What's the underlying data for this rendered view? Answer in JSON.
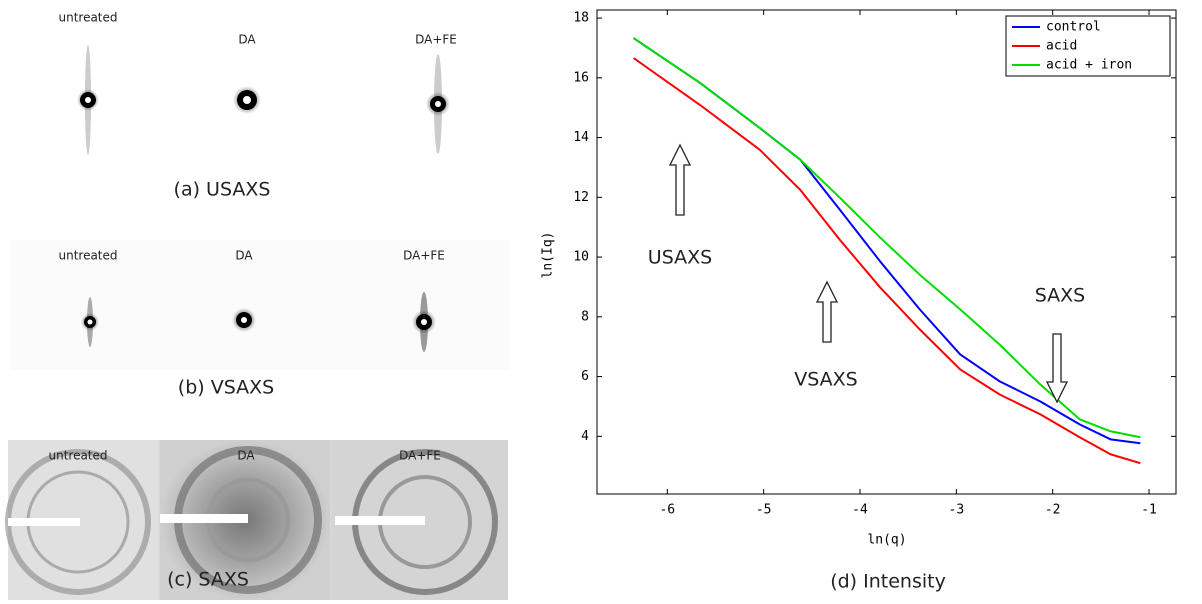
{
  "panels": [
    {
      "labels": [
        "untreated",
        "DA",
        "DA+FE"
      ],
      "caption": "(a) USAXS"
    },
    {
      "labels": [
        "untreated",
        "DA",
        "DA+FE"
      ],
      "caption": "(b) VSAXS"
    },
    {
      "labels": [
        "untreated",
        "DA",
        "DA+FE"
      ],
      "caption": "(c) SAXS"
    }
  ],
  "chart_data": {
    "type": "line",
    "caption": "(d) Intensity",
    "xlabel": "ln(q)",
    "ylabel": "ln(Iq)",
    "xlim": [
      -6.73,
      -0.72
    ],
    "ylim": [
      2.07,
      18.27
    ],
    "xticks": [
      -6,
      -5,
      -4,
      -3,
      -2,
      -1
    ],
    "yticks": [
      4,
      6,
      8,
      10,
      12,
      14,
      16,
      18
    ],
    "grid": false,
    "legend": "upper right",
    "x": [
      -6.35,
      -5.66,
      -5.04,
      -4.62,
      -4.21,
      -3.79,
      -3.38,
      -2.96,
      -2.55,
      -2.13,
      -1.72,
      -1.4,
      -1.09
    ],
    "series": [
      {
        "name": "control",
        "color": "#0000ff",
        "values": [
          17.33,
          15.83,
          14.32,
          13.26,
          11.59,
          9.85,
          8.25,
          6.74,
          5.84,
          5.17,
          4.4,
          3.9,
          3.77
        ]
      },
      {
        "name": "acid",
        "color": "#ff0000",
        "values": [
          16.66,
          15.09,
          13.59,
          12.25,
          10.58,
          8.98,
          7.58,
          6.24,
          5.4,
          4.74,
          3.97,
          3.4,
          3.1
        ]
      },
      {
        "name": "acid + iron",
        "color": "#00dd00",
        "values": [
          17.33,
          15.83,
          14.32,
          13.26,
          11.99,
          10.65,
          9.41,
          8.25,
          7.07,
          5.74,
          4.57,
          4.17,
          3.97
        ]
      }
    ],
    "annotations": [
      "USAXS",
      "VSAXS",
      "SAXS"
    ]
  }
}
